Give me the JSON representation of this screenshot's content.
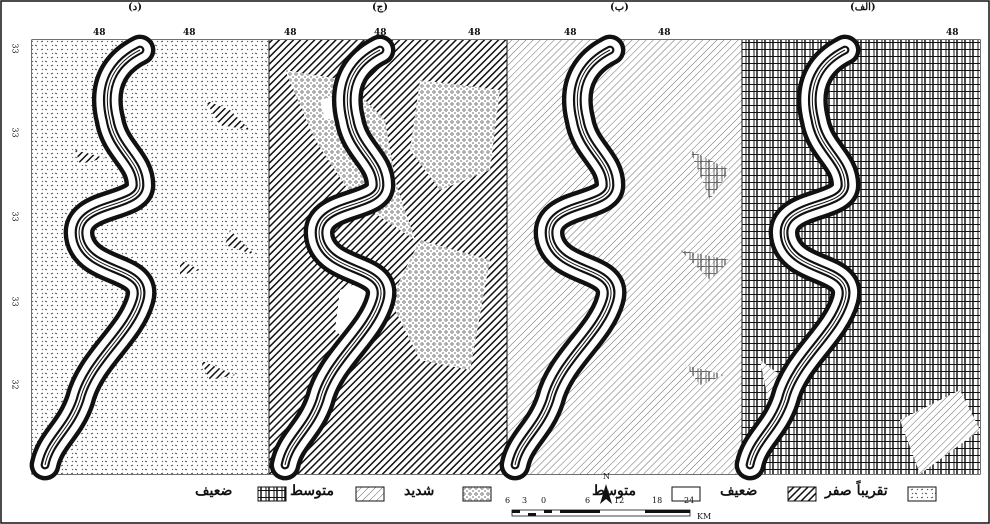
{
  "panels": [
    {
      "title": "(د)",
      "ticks": [
        "48",
        "48"
      ],
      "fill": "speckle"
    },
    {
      "title": "(ج)",
      "ticks": [
        "48",
        "48"
      ],
      "fill": "hatch-dark"
    },
    {
      "title": "(ب)",
      "ticks": [
        "48",
        "48"
      ],
      "fill": "hatch-light"
    },
    {
      "title": "(الف)",
      "ticks": [
        "48",
        "48"
      ],
      "fill": "bricks"
    }
  ],
  "y_ticks": [
    "33",
    "33",
    "33",
    "33",
    "32"
  ],
  "legend": [
    {
      "label": "تقريباً صفر",
      "pattern": "speckle"
    },
    {
      "label": "ضعيف",
      "pattern": "hatch-dark"
    },
    {
      "label": "متوسط",
      "pattern": "blank"
    },
    {
      "label": "شديد",
      "pattern": "dots"
    },
    {
      "label": "متوسط",
      "pattern": "hatch-light"
    },
    {
      "label": "ضعيف",
      "pattern": "bricks"
    }
  ],
  "scale": {
    "ticks": [
      "6",
      "3",
      "0",
      "6",
      "12",
      "18",
      "24"
    ],
    "unit": "KM"
  },
  "north": "N",
  "colors": {
    "ink": "#111111",
    "paper": "#ffffff"
  }
}
